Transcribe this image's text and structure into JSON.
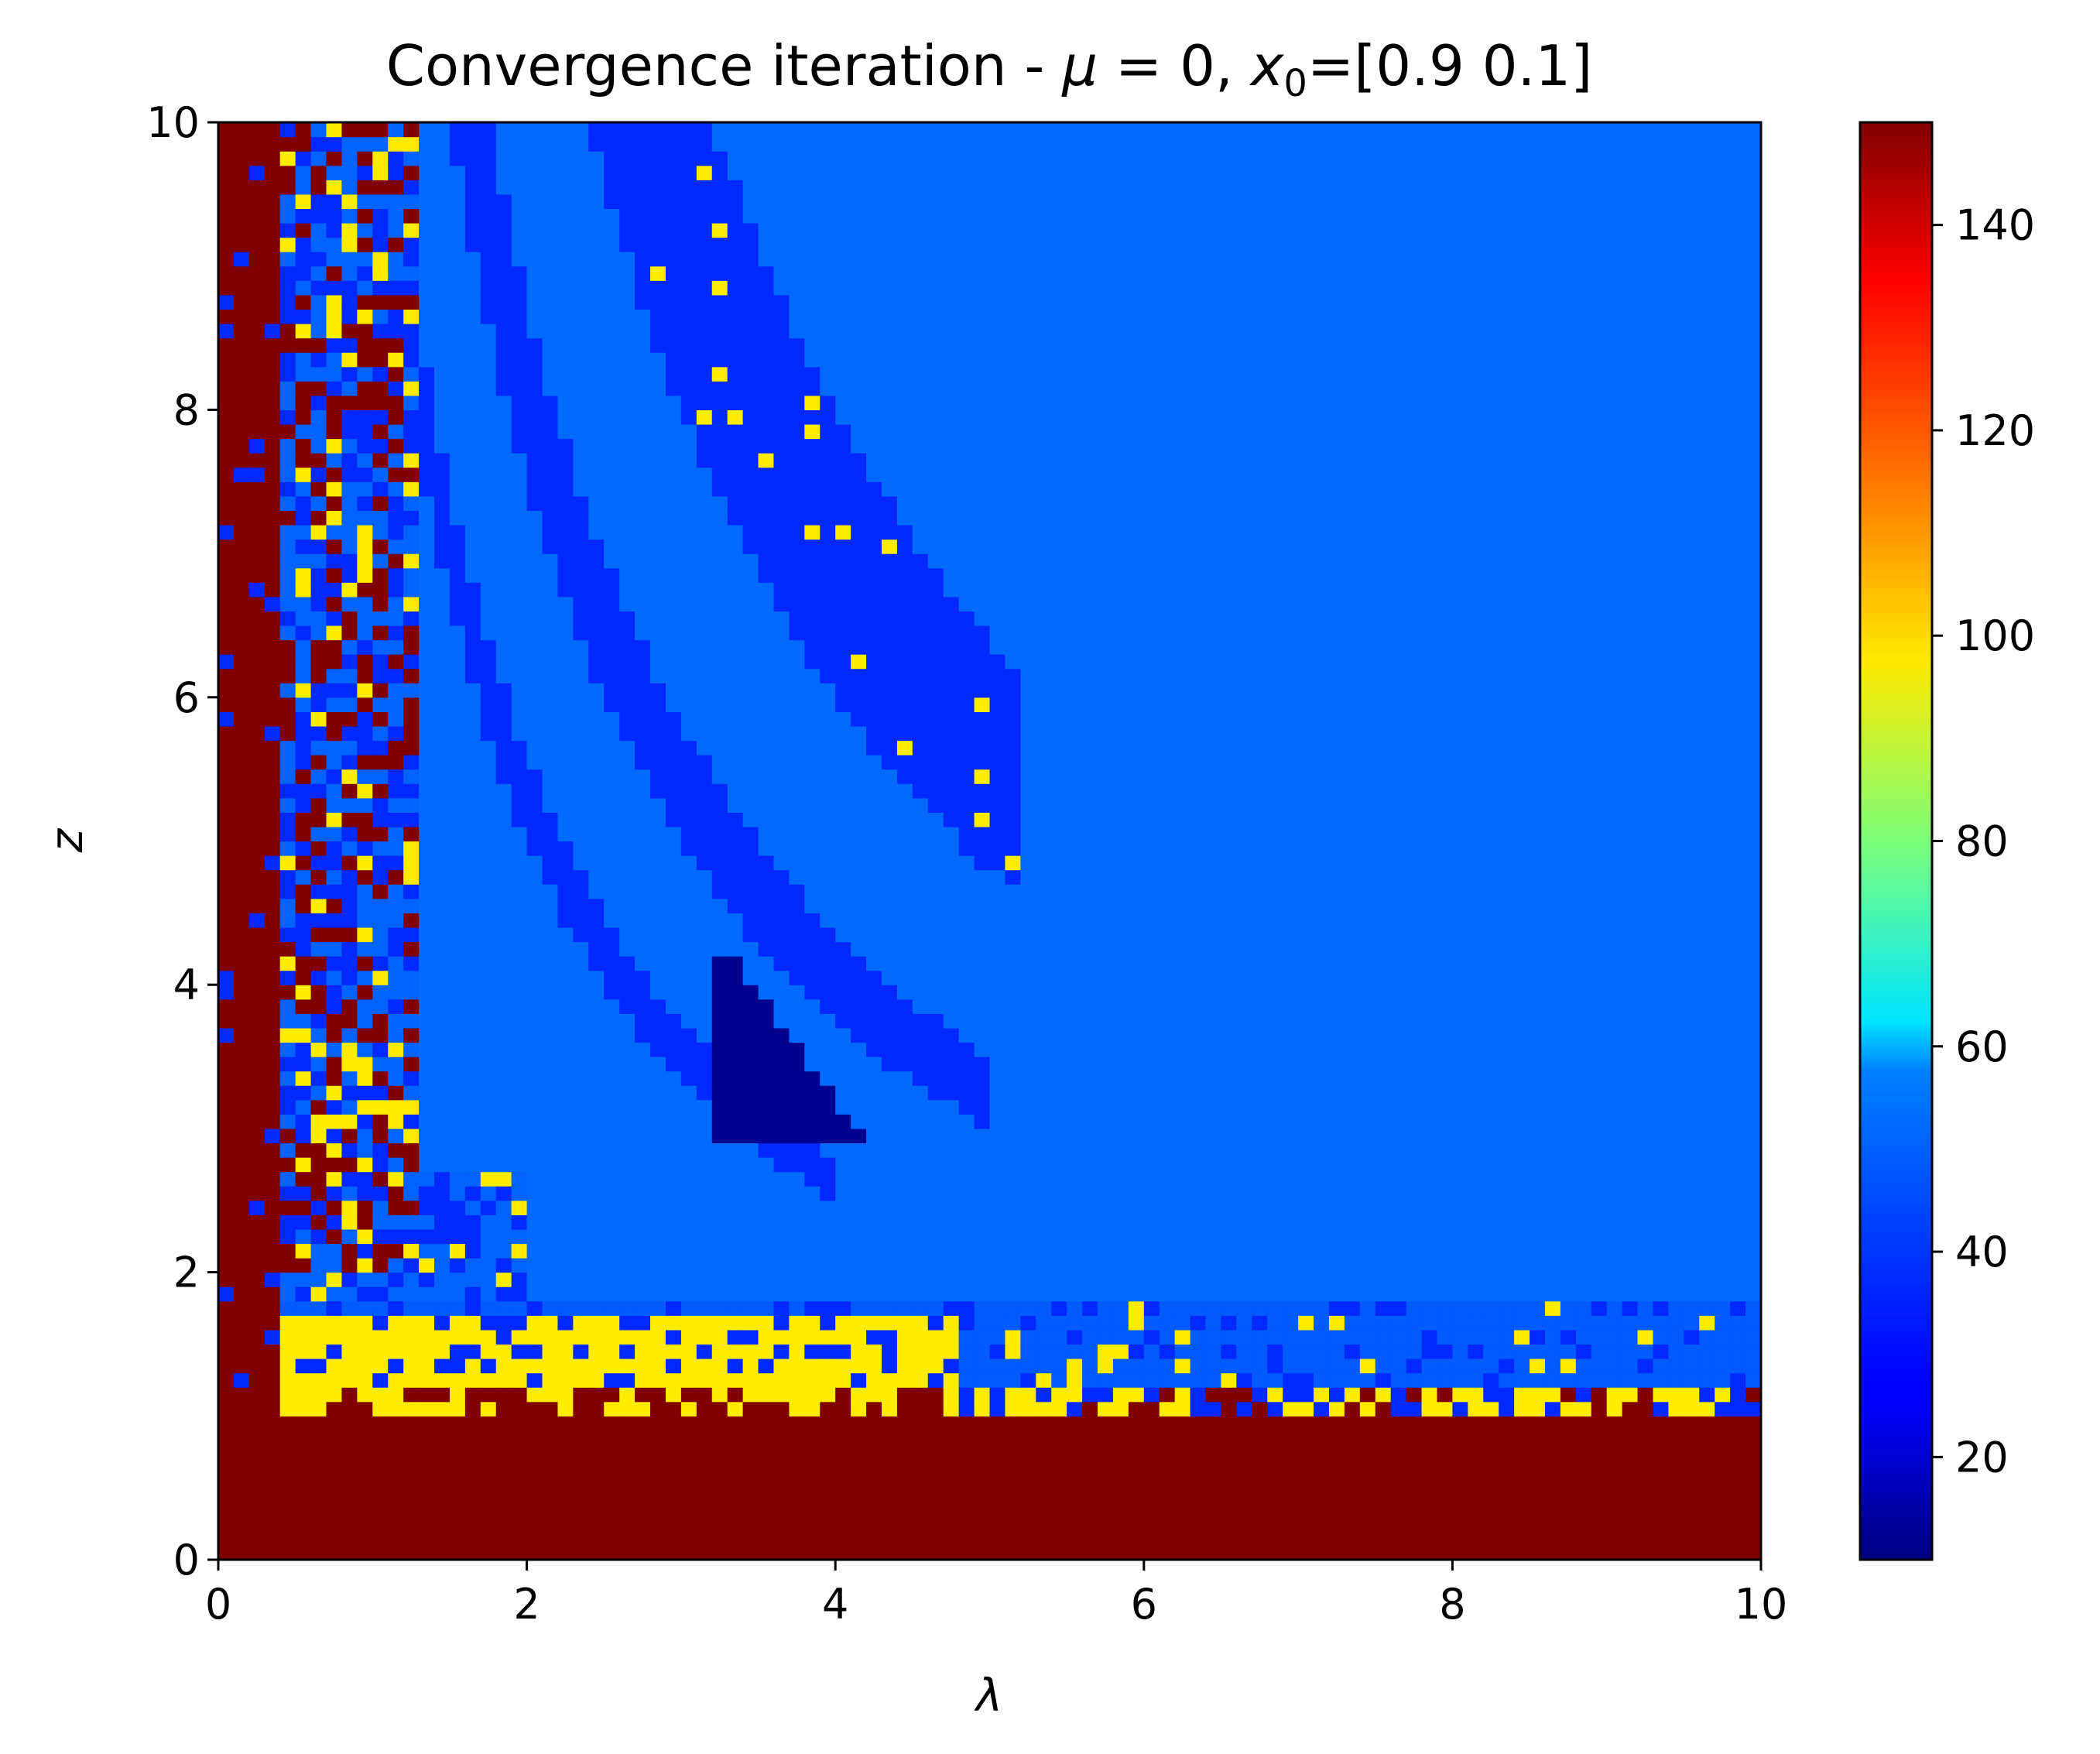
{
  "chart_data": {
    "type": "heatmap",
    "title_prefix": "Convergence iteration - ",
    "title_mu_symbol": "μ",
    "title_mu_eq": " = 0, ",
    "title_x_symbol": "x",
    "title_x_sub": "0",
    "title_x0_value": "=[0.9 0.1]",
    "xlabel": "λ",
    "ylabel": "z",
    "xlim": [
      0,
      10
    ],
    "ylim": [
      0,
      10
    ],
    "xticks": [
      "0",
      "2",
      "4",
      "6",
      "8",
      "10"
    ],
    "yticks": [
      "0",
      "2",
      "4",
      "6",
      "8",
      "10"
    ],
    "colorbar": {
      "colormap": "jet",
      "range": [
        10,
        150
      ],
      "ticks": [
        "20",
        "40",
        "60",
        "80",
        "100",
        "120",
        "140"
      ]
    },
    "grid_resolution": [
      100,
      100
    ],
    "regions": [
      {
        "description": "max iterations (non-convergent)",
        "value": 150,
        "where": "z < 1 or lambda < 0.4"
      },
      {
        "description": "background convergence",
        "value": 42,
        "where": "lambda > 1.5, z > 2"
      },
      {
        "description": "darker bands",
        "value": 32,
        "where": "curved bands lambda*z ≈ 20-30"
      },
      {
        "description": "minimum iteration pocket",
        "value": 12,
        "where": "lambda ≈ 3.3-4.2, z ≈ 2.9-4.2"
      },
      {
        "description": "transition zone",
        "value": 100,
        "where": "z ≈ 1-1.8 near lambda 1-4"
      }
    ]
  }
}
